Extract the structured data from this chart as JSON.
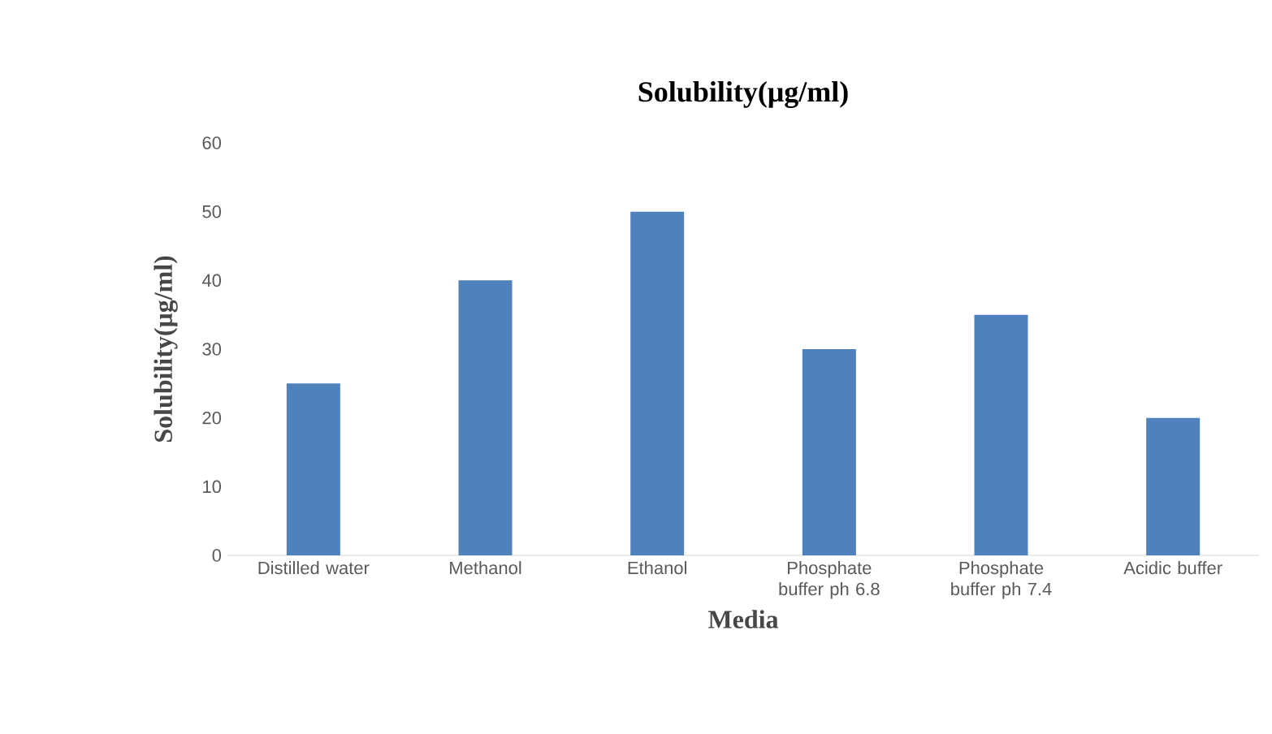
{
  "chart_data": {
    "type": "bar",
    "title": "Solubility(μg/ml)",
    "xlabel": "Media",
    "ylabel": "Solubility(μg/ml)",
    "categories": [
      "Distilled water",
      "Methanol",
      "Ethanol",
      "Phosphate buffer ph 6.8",
      "Phosphate buffer ph 7.4",
      "Acidic buffer"
    ],
    "values": [
      25,
      40,
      50,
      30,
      35,
      20
    ],
    "color": "#4f81bd",
    "ylim": [
      0,
      60
    ],
    "yticks": [
      0,
      10,
      20,
      30,
      40,
      50,
      60
    ],
    "grid": false
  }
}
